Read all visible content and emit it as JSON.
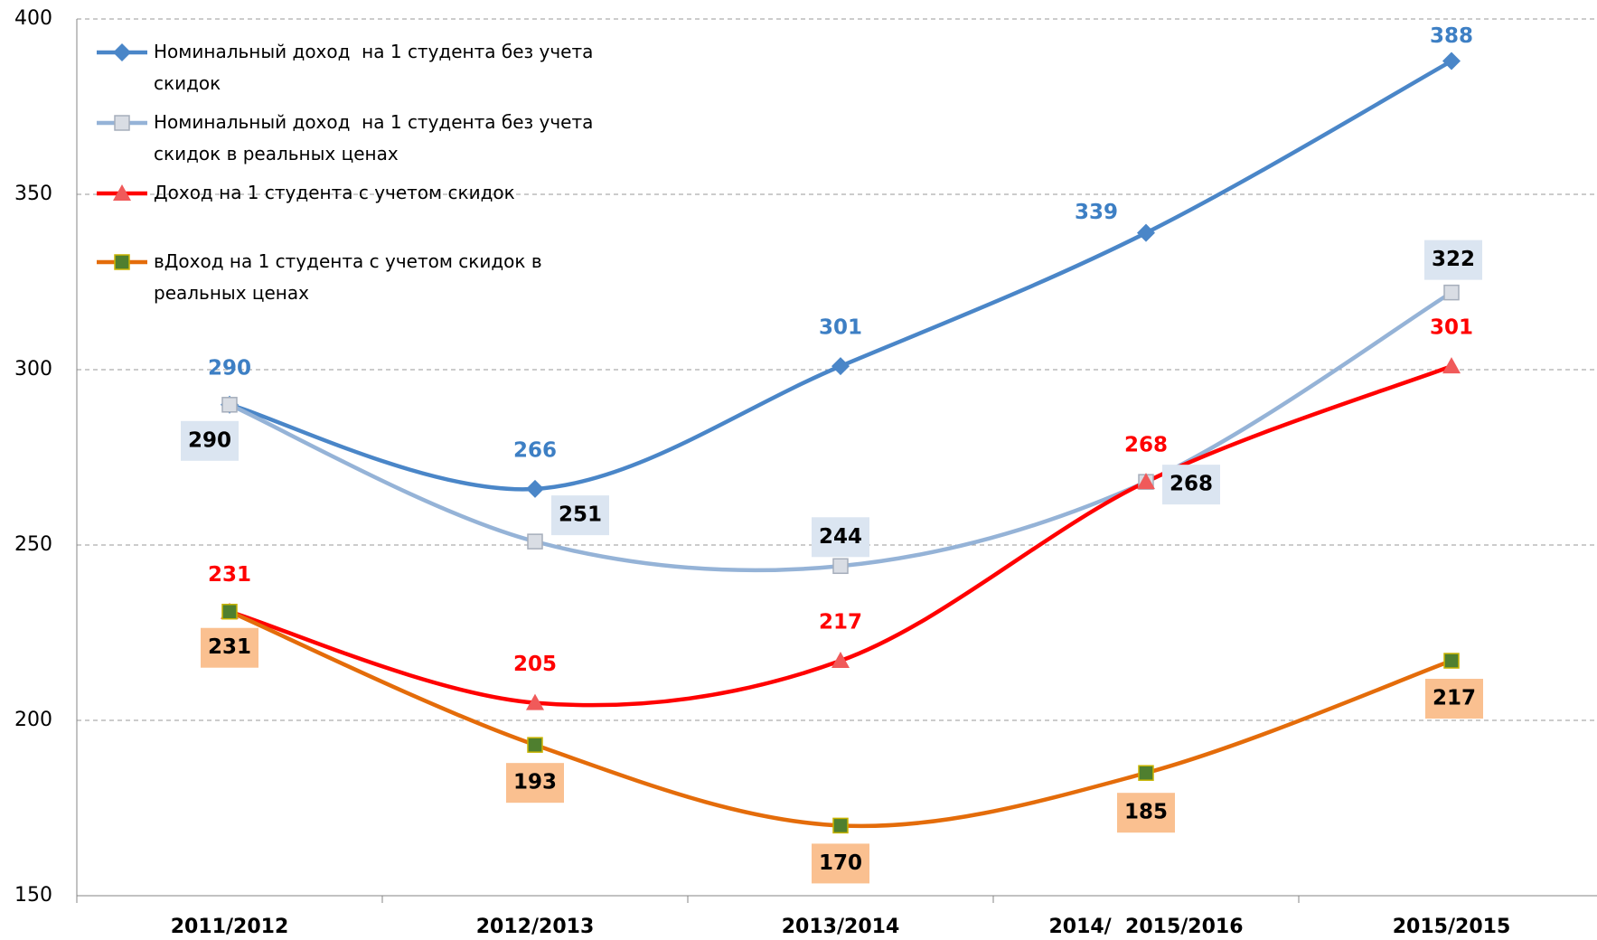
{
  "chart_data": {
    "type": "line",
    "categories": [
      "2011/2012",
      "2012/2013",
      "2013/2014",
      "2014/  2015/2016",
      "2015/2015"
    ],
    "series": [
      {
        "name": "Номинальный доход  на 1 студента без учета скидок",
        "color": "#4a86c8",
        "marker_color": "#4a86c8",
        "values": [
          290,
          266,
          301,
          339,
          388
        ]
      },
      {
        "name": "Номинальный доход  на 1 студента без учета скидок в реальных ценах",
        "color": "#95b3d7",
        "marker_color": "#d9dde4",
        "values": [
          290,
          251,
          244,
          268,
          322
        ]
      },
      {
        "name": "Доход на 1 студента с учетом скидок",
        "color": "#ff0000",
        "marker_color": "#f05a5a",
        "values": [
          231,
          205,
          217,
          268,
          301
        ]
      },
      {
        "name": "вДоход на 1 студента с учетом скидок в реальных ценах",
        "color": "#e46c0a",
        "marker_color": "#4f7f2f",
        "values": [
          231,
          193,
          170,
          185,
          217
        ]
      }
    ],
    "ylim": [
      150,
      400
    ],
    "yticks": [
      150,
      200,
      250,
      300,
      350,
      400
    ],
    "grid": true,
    "legend": "top-left"
  }
}
